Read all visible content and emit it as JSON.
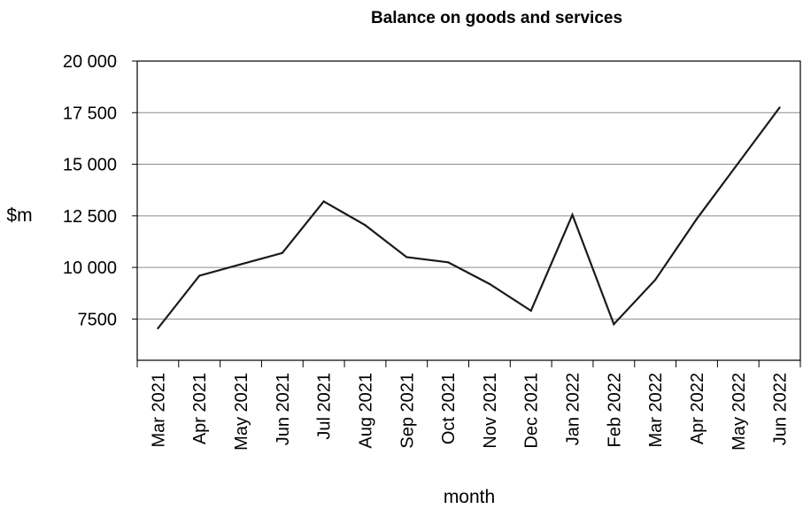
{
  "chart_data": {
    "type": "line",
    "title": "Balance on goods and services",
    "xlabel": "month",
    "ylabel": "$m",
    "categories": [
      "Mar 2021",
      "Apr 2021",
      "May 2021",
      "Jun 2021",
      "Jul 2021",
      "Aug 2021",
      "Sep 2021",
      "Oct 2021",
      "Nov 2021",
      "Dec 2021",
      "Jan 2022",
      "Feb 2022",
      "Mar 2022",
      "Apr 2022",
      "May 2022",
      "Jun 2022"
    ],
    "series": [
      {
        "values": [
          7050,
          9600,
          10150,
          10700,
          13200,
          12050,
          10500,
          10250,
          9200,
          7900,
          12550,
          7250,
          9400,
          12350,
          15050,
          17750
        ]
      }
    ],
    "ylim": [
      5500,
      20000
    ],
    "yticks": [
      7500,
      10000,
      12500,
      15000,
      17500,
      20000
    ],
    "ytick_labels": [
      "7500",
      "10 000",
      "12 500",
      "15 000",
      "17 500",
      "20 000"
    ],
    "grid": true,
    "line_color": "#1a1a1a",
    "grid_color": "#8c8c8c"
  }
}
